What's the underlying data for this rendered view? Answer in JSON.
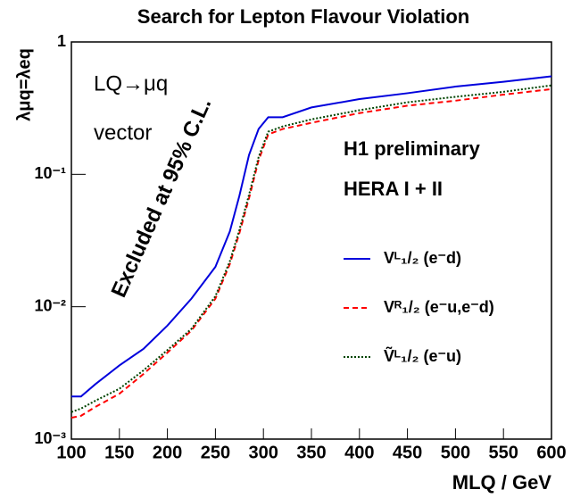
{
  "chart_data": {
    "type": "line",
    "title": "Search for Lepton Flavour Violation",
    "y_label": "λμq=λeq",
    "x_label": "MLQ / GeV",
    "annotations": [
      "LQ→μq",
      "vector",
      "Excluded at 95% C.L.",
      "H1 preliminary",
      "HERA I + II"
    ],
    "log_y": true,
    "x": [
      100,
      110,
      125,
      150,
      175,
      200,
      225,
      250,
      265,
      275,
      285,
      295,
      305,
      320,
      350,
      400,
      450,
      500,
      550,
      600
    ],
    "series": [
      {
        "name": "Vᴸ₁/₂ (e⁻d)",
        "color": "#0000dd",
        "style": "solid",
        "values": [
          0.0021,
          0.0021,
          0.0026,
          0.0036,
          0.0048,
          0.0072,
          0.0115,
          0.02,
          0.037,
          0.069,
          0.14,
          0.22,
          0.27,
          0.27,
          0.32,
          0.37,
          0.41,
          0.46,
          0.5,
          0.55
        ]
      },
      {
        "name": "Vᴿ₁/₂ (e⁻u,e⁻d)",
        "color": "#ff0000",
        "style": "dashed",
        "values": [
          0.00145,
          0.0015,
          0.00175,
          0.0022,
          0.0031,
          0.0045,
          0.0066,
          0.0115,
          0.021,
          0.036,
          0.066,
          0.128,
          0.2,
          0.22,
          0.245,
          0.29,
          0.33,
          0.36,
          0.4,
          0.44
        ]
      },
      {
        "name": "Ṽᴸ₁/₂ (e⁻u)",
        "color": "#004400",
        "style": "dotted",
        "values": [
          0.0016,
          0.0017,
          0.00195,
          0.0024,
          0.0033,
          0.0047,
          0.0068,
          0.012,
          0.022,
          0.038,
          0.07,
          0.135,
          0.21,
          0.23,
          0.26,
          0.305,
          0.35,
          0.385,
          0.42,
          0.47
        ]
      }
    ],
    "xlim": [
      100,
      600
    ],
    "xticks": [
      100,
      150,
      200,
      250,
      300,
      350,
      400,
      450,
      500,
      550,
      600
    ],
    "ylim": [
      0.001,
      1
    ],
    "yticks": [
      {
        "value": 0.001,
        "label": "10⁻³"
      },
      {
        "value": 0.01,
        "label": "10⁻²"
      },
      {
        "value": 0.1,
        "label": "10⁻¹"
      },
      1
    ]
  }
}
